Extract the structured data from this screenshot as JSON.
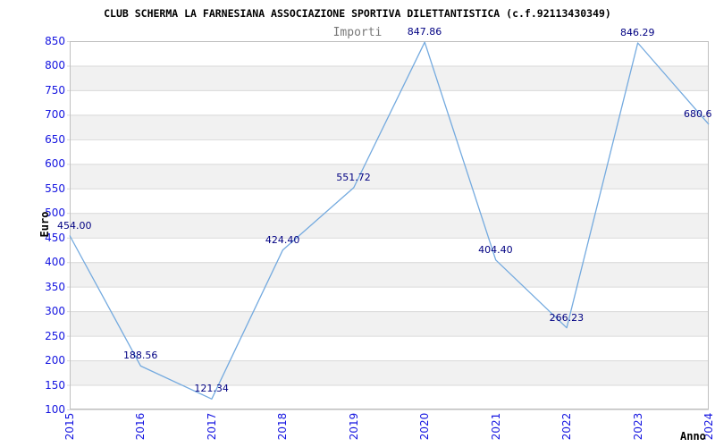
{
  "chart_data": {
    "type": "line",
    "title": "CLUB SCHERMA LA FARNESIANA ASSOCIAZIONE SPORTIVA DILETTANTISTICA (c.f.92113430349)",
    "subtitle": "Importi",
    "xlabel": "Anno",
    "ylabel": "Euro",
    "x": [
      "2015",
      "2016",
      "2017",
      "2018",
      "2019",
      "2020",
      "2021",
      "2022",
      "2023",
      "2024"
    ],
    "series": [
      {
        "name": "Importi",
        "values": [
          454.0,
          188.56,
          121.34,
          424.4,
          551.72,
          847.86,
          404.4,
          266.23,
          846.29,
          680.6
        ],
        "point_labels": [
          "454.00",
          "188.56",
          "121.34",
          "424.40",
          "551.72",
          "847.86",
          "404.40",
          "266.23",
          "846.29",
          "680.6"
        ]
      }
    ],
    "ylim": [
      100,
      850
    ],
    "ytick_step": 50,
    "grid": "horizontal-only",
    "legend": "none",
    "colors": {
      "line": "#74aadf",
      "axis_tick_label": "#1414e0",
      "point_label": "#000082",
      "title": "#000000",
      "subtitle": "#787878",
      "axis_title": "#000000",
      "band_fill": "#f1f1f1",
      "gridline": "#d9d9d9",
      "plot_border": "#c0c0c0",
      "background": "#ffffff"
    }
  }
}
